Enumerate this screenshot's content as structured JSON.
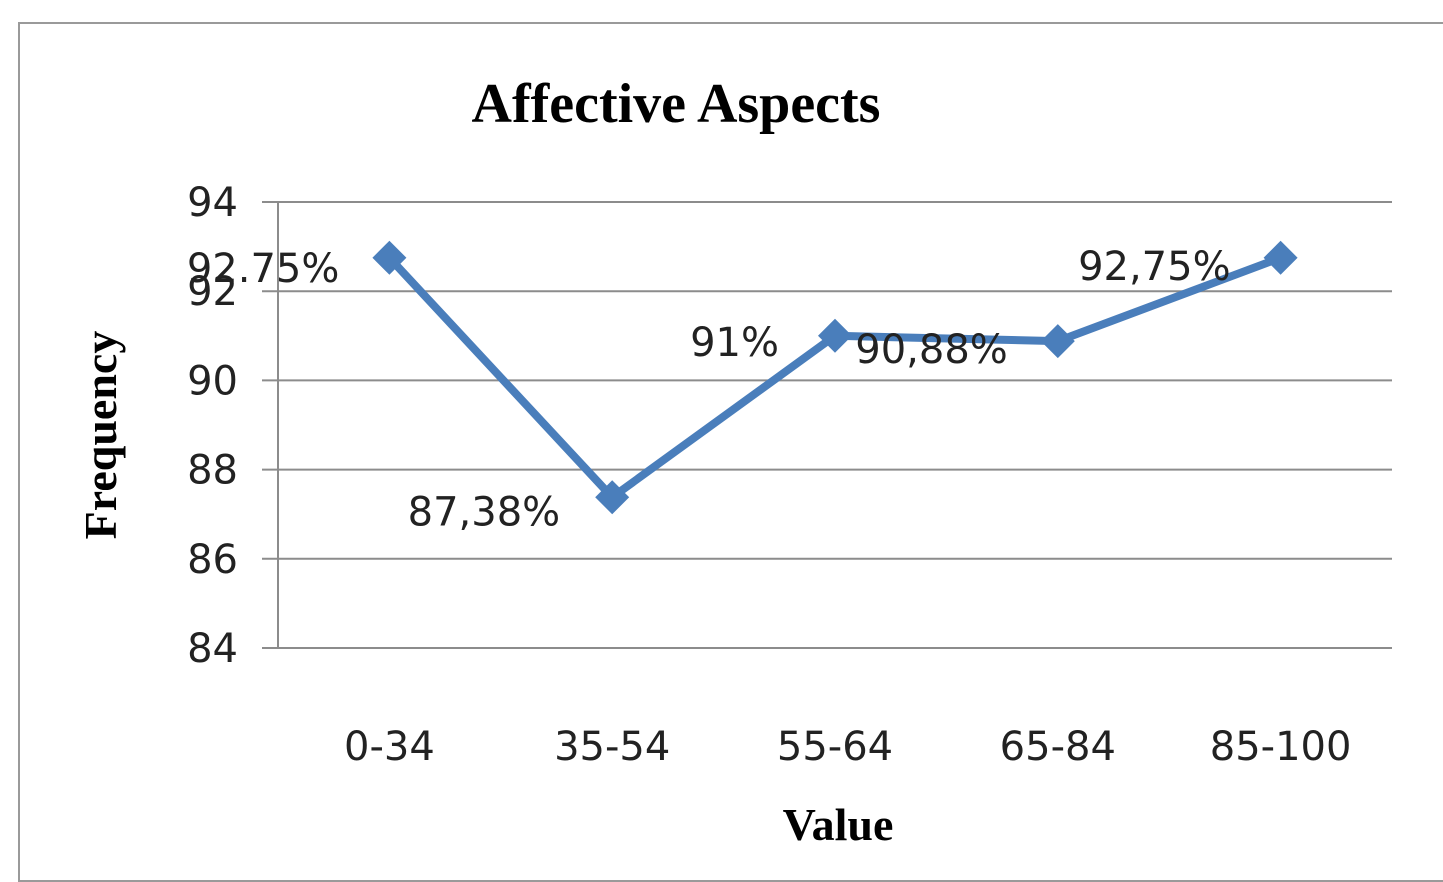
{
  "chart_data": {
    "type": "line",
    "title": "Affective Aspects",
    "xlabel": "Value",
    "ylabel": "Frequency",
    "categories": [
      "0-34",
      "35-54",
      "55-64",
      "65-84",
      "85-100"
    ],
    "ylim": [
      84,
      94
    ],
    "yticks": [
      84,
      86,
      88,
      90,
      92,
      94
    ],
    "grid": true,
    "legend": "none",
    "series": [
      {
        "color": "#4a7ebb",
        "marker": "diamond",
        "values": [
          92.75,
          87.38,
          91,
          90.88,
          92.75
        ],
        "labels": [
          "92.75%",
          "87,38%",
          "91%",
          "90,88%",
          "92,75%"
        ]
      }
    ]
  }
}
